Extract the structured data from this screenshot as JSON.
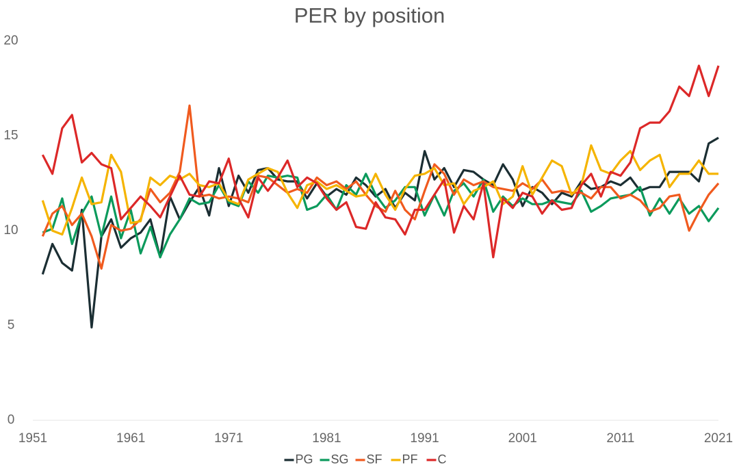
{
  "chart_data": {
    "type": "line",
    "title": "PER by position",
    "x": [
      1952,
      1953,
      1954,
      1955,
      1956,
      1957,
      1958,
      1959,
      1960,
      1961,
      1962,
      1963,
      1964,
      1965,
      1966,
      1967,
      1968,
      1969,
      1970,
      1971,
      1972,
      1973,
      1974,
      1975,
      1976,
      1977,
      1978,
      1979,
      1980,
      1981,
      1982,
      1983,
      1984,
      1985,
      1986,
      1987,
      1988,
      1989,
      1990,
      1991,
      1992,
      1993,
      1994,
      1995,
      1996,
      1997,
      1998,
      1999,
      2000,
      2001,
      2002,
      2003,
      2004,
      2005,
      2006,
      2007,
      2008,
      2009,
      2010,
      2011,
      2012,
      2013,
      2014,
      2015,
      2016,
      2017,
      2018,
      2019,
      2020,
      2021
    ],
    "series": [
      {
        "name": "PG",
        "color": "#1b2e33",
        "values": [
          7.7,
          9.3,
          8.3,
          7.9,
          11.1,
          4.9,
          9.7,
          10.6,
          9.1,
          9.6,
          9.9,
          10.6,
          8.6,
          11.8,
          10.6,
          11.5,
          12.3,
          10.8,
          13.3,
          11.3,
          12.9,
          12.0,
          13.2,
          13.3,
          12.7,
          12.6,
          12.6,
          11.7,
          12.5,
          11.8,
          12.2,
          11.9,
          12.8,
          12.4,
          11.8,
          12.2,
          11.2,
          12.0,
          11.6,
          14.2,
          12.7,
          13.3,
          12.3,
          13.2,
          13.1,
          12.7,
          12.4,
          13.5,
          12.7,
          11.3,
          12.3,
          12.0,
          11.4,
          12.0,
          11.8,
          12.6,
          12.2,
          12.3,
          12.6,
          12.4,
          12.8,
          12.1,
          12.3,
          12.3,
          13.1,
          13.1,
          13.1,
          12.6,
          14.6,
          14.9
        ]
      },
      {
        "name": "SG",
        "color": "#0b9a5c",
        "values": [
          9.9,
          10.1,
          11.7,
          9.3,
          10.9,
          11.8,
          9.7,
          11.8,
          9.6,
          11.1,
          8.8,
          10.2,
          8.6,
          9.8,
          10.6,
          11.7,
          11.4,
          11.5,
          12.4,
          11.5,
          11.3,
          12.6,
          12.0,
          12.9,
          12.8,
          12.9,
          12.8,
          11.1,
          11.3,
          11.9,
          11.1,
          12.4,
          11.9,
          13.0,
          11.9,
          11.2,
          11.6,
          12.3,
          12.3,
          10.8,
          11.9,
          10.8,
          12.1,
          12.5,
          11.8,
          12.7,
          11.0,
          11.8,
          11.3,
          11.7,
          11.4,
          11.4,
          11.6,
          11.5,
          11.4,
          12.1,
          11.0,
          11.3,
          11.7,
          11.8,
          11.9,
          12.3,
          10.8,
          11.7,
          10.9,
          11.7,
          10.9,
          11.3,
          10.5,
          11.2
        ]
      },
      {
        "name": "SF",
        "color": "#f05a1e",
        "values": [
          9.7,
          10.9,
          11.3,
          10.3,
          10.9,
          9.7,
          8.0,
          10.3,
          10.0,
          10.1,
          10.6,
          12.2,
          11.5,
          12.0,
          13.1,
          16.6,
          11.8,
          11.9,
          11.7,
          11.8,
          11.7,
          11.5,
          12.9,
          12.8,
          12.4,
          12.0,
          12.2,
          12.0,
          12.8,
          12.4,
          12.6,
          12.2,
          12.6,
          11.9,
          11.3,
          11.0,
          12.1,
          11.1,
          10.6,
          12.1,
          13.5,
          13.0,
          11.9,
          12.7,
          12.4,
          12.6,
          12.3,
          12.2,
          12.1,
          12.5,
          12.2,
          12.7,
          12.0,
          12.1,
          12.0,
          12.0,
          11.7,
          12.3,
          12.3,
          11.7,
          11.9,
          11.6,
          11.0,
          11.2,
          11.8,
          11.9,
          10.0,
          11.0,
          11.9,
          12.5
        ]
      },
      {
        "name": "PF",
        "color": "#f5b400",
        "values": [
          11.6,
          10.0,
          9.8,
          11.2,
          12.8,
          11.4,
          11.5,
          14.0,
          13.1,
          10.4,
          10.5,
          12.8,
          12.4,
          12.9,
          12.7,
          13.0,
          12.4,
          12.3,
          12.5,
          11.6,
          11.4,
          12.7,
          13.0,
          13.3,
          13.1,
          12.0,
          11.2,
          12.4,
          12.6,
          12.2,
          12.4,
          12.1,
          11.8,
          11.9,
          13.0,
          11.9,
          11.1,
          12.2,
          12.9,
          13.0,
          13.3,
          12.4,
          12.5,
          11.4,
          12.1,
          12.3,
          12.6,
          11.4,
          11.8,
          13.4,
          11.9,
          12.8,
          13.7,
          13.4,
          11.9,
          12.4,
          14.5,
          13.2,
          13.0,
          13.7,
          14.2,
          13.2,
          13.7,
          14.0,
          12.3,
          13.0,
          13.0,
          13.7,
          13.0,
          13.0
        ]
      },
      {
        "name": "C",
        "color": "#dc2828",
        "values": [
          14.0,
          13.0,
          15.4,
          16.1,
          13.6,
          14.1,
          13.5,
          13.3,
          10.6,
          11.2,
          11.8,
          11.3,
          10.7,
          11.8,
          12.9,
          11.9,
          11.8,
          12.6,
          12.5,
          13.8,
          11.7,
          10.7,
          12.8,
          12.1,
          12.8,
          13.7,
          12.3,
          12.8,
          12.5,
          11.7,
          11.1,
          11.5,
          10.2,
          10.1,
          11.5,
          10.7,
          10.6,
          9.8,
          11.1,
          11.1,
          11.9,
          12.7,
          9.9,
          11.3,
          10.6,
          12.5,
          8.6,
          11.7,
          11.2,
          12.0,
          11.8,
          10.9,
          11.6,
          11.1,
          11.2,
          12.4,
          13.0,
          11.8,
          13.1,
          12.9,
          13.6,
          15.4,
          15.7,
          15.7,
          16.3,
          17.6,
          17.1,
          18.7,
          17.1,
          18.7
        ]
      }
    ],
    "xlim": [
      1951,
      2021
    ],
    "xticks": [
      1951,
      1961,
      1971,
      1981,
      1991,
      2001,
      2011,
      2021
    ],
    "ylim": [
      0,
      20
    ],
    "yticks": [
      0,
      5,
      10,
      15,
      20
    ],
    "grid": false,
    "legend": "bottom"
  }
}
